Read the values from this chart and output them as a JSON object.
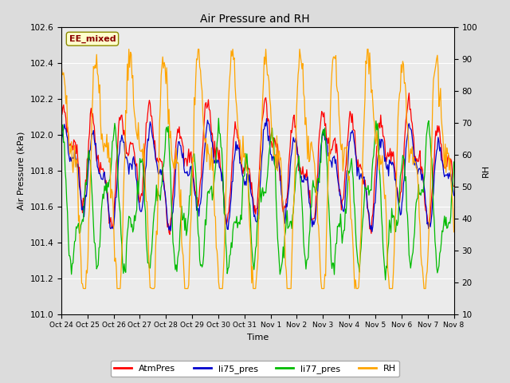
{
  "title": "Air Pressure and RH",
  "xlabel": "Time",
  "ylabel_left": "Air Pressure (kPa)",
  "ylabel_right": "RH",
  "ylim_left": [
    101.0,
    102.6
  ],
  "ylim_right": [
    10,
    100
  ],
  "yticks_left": [
    101.0,
    101.2,
    101.4,
    101.6,
    101.8,
    102.0,
    102.2,
    102.4,
    102.6
  ],
  "yticks_right": [
    10,
    20,
    30,
    40,
    50,
    60,
    70,
    80,
    90,
    100
  ],
  "xtick_labels": [
    "Oct 24",
    "Oct 25",
    "Oct 26",
    "Oct 27",
    "Oct 28",
    "Oct 29",
    "Oct 30",
    "Oct 31",
    "Nov 1",
    "Nov 2",
    "Nov 3",
    "Nov 4",
    "Nov 5",
    "Nov 6",
    "Nov 7",
    "Nov 8"
  ],
  "annotation_text": "EE_mixed",
  "colors": {
    "AtmPres": "#FF0000",
    "li75_pres": "#0000CC",
    "li77_pres": "#00BB00",
    "RH": "#FFA500"
  },
  "legend_labels": [
    "AtmPres",
    "li75_pres",
    "li77_pres",
    "RH"
  ],
  "background_color": "#DCDCDC",
  "plot_bg_color": "#EBEBEB",
  "grid_color": "#FFFFFF"
}
